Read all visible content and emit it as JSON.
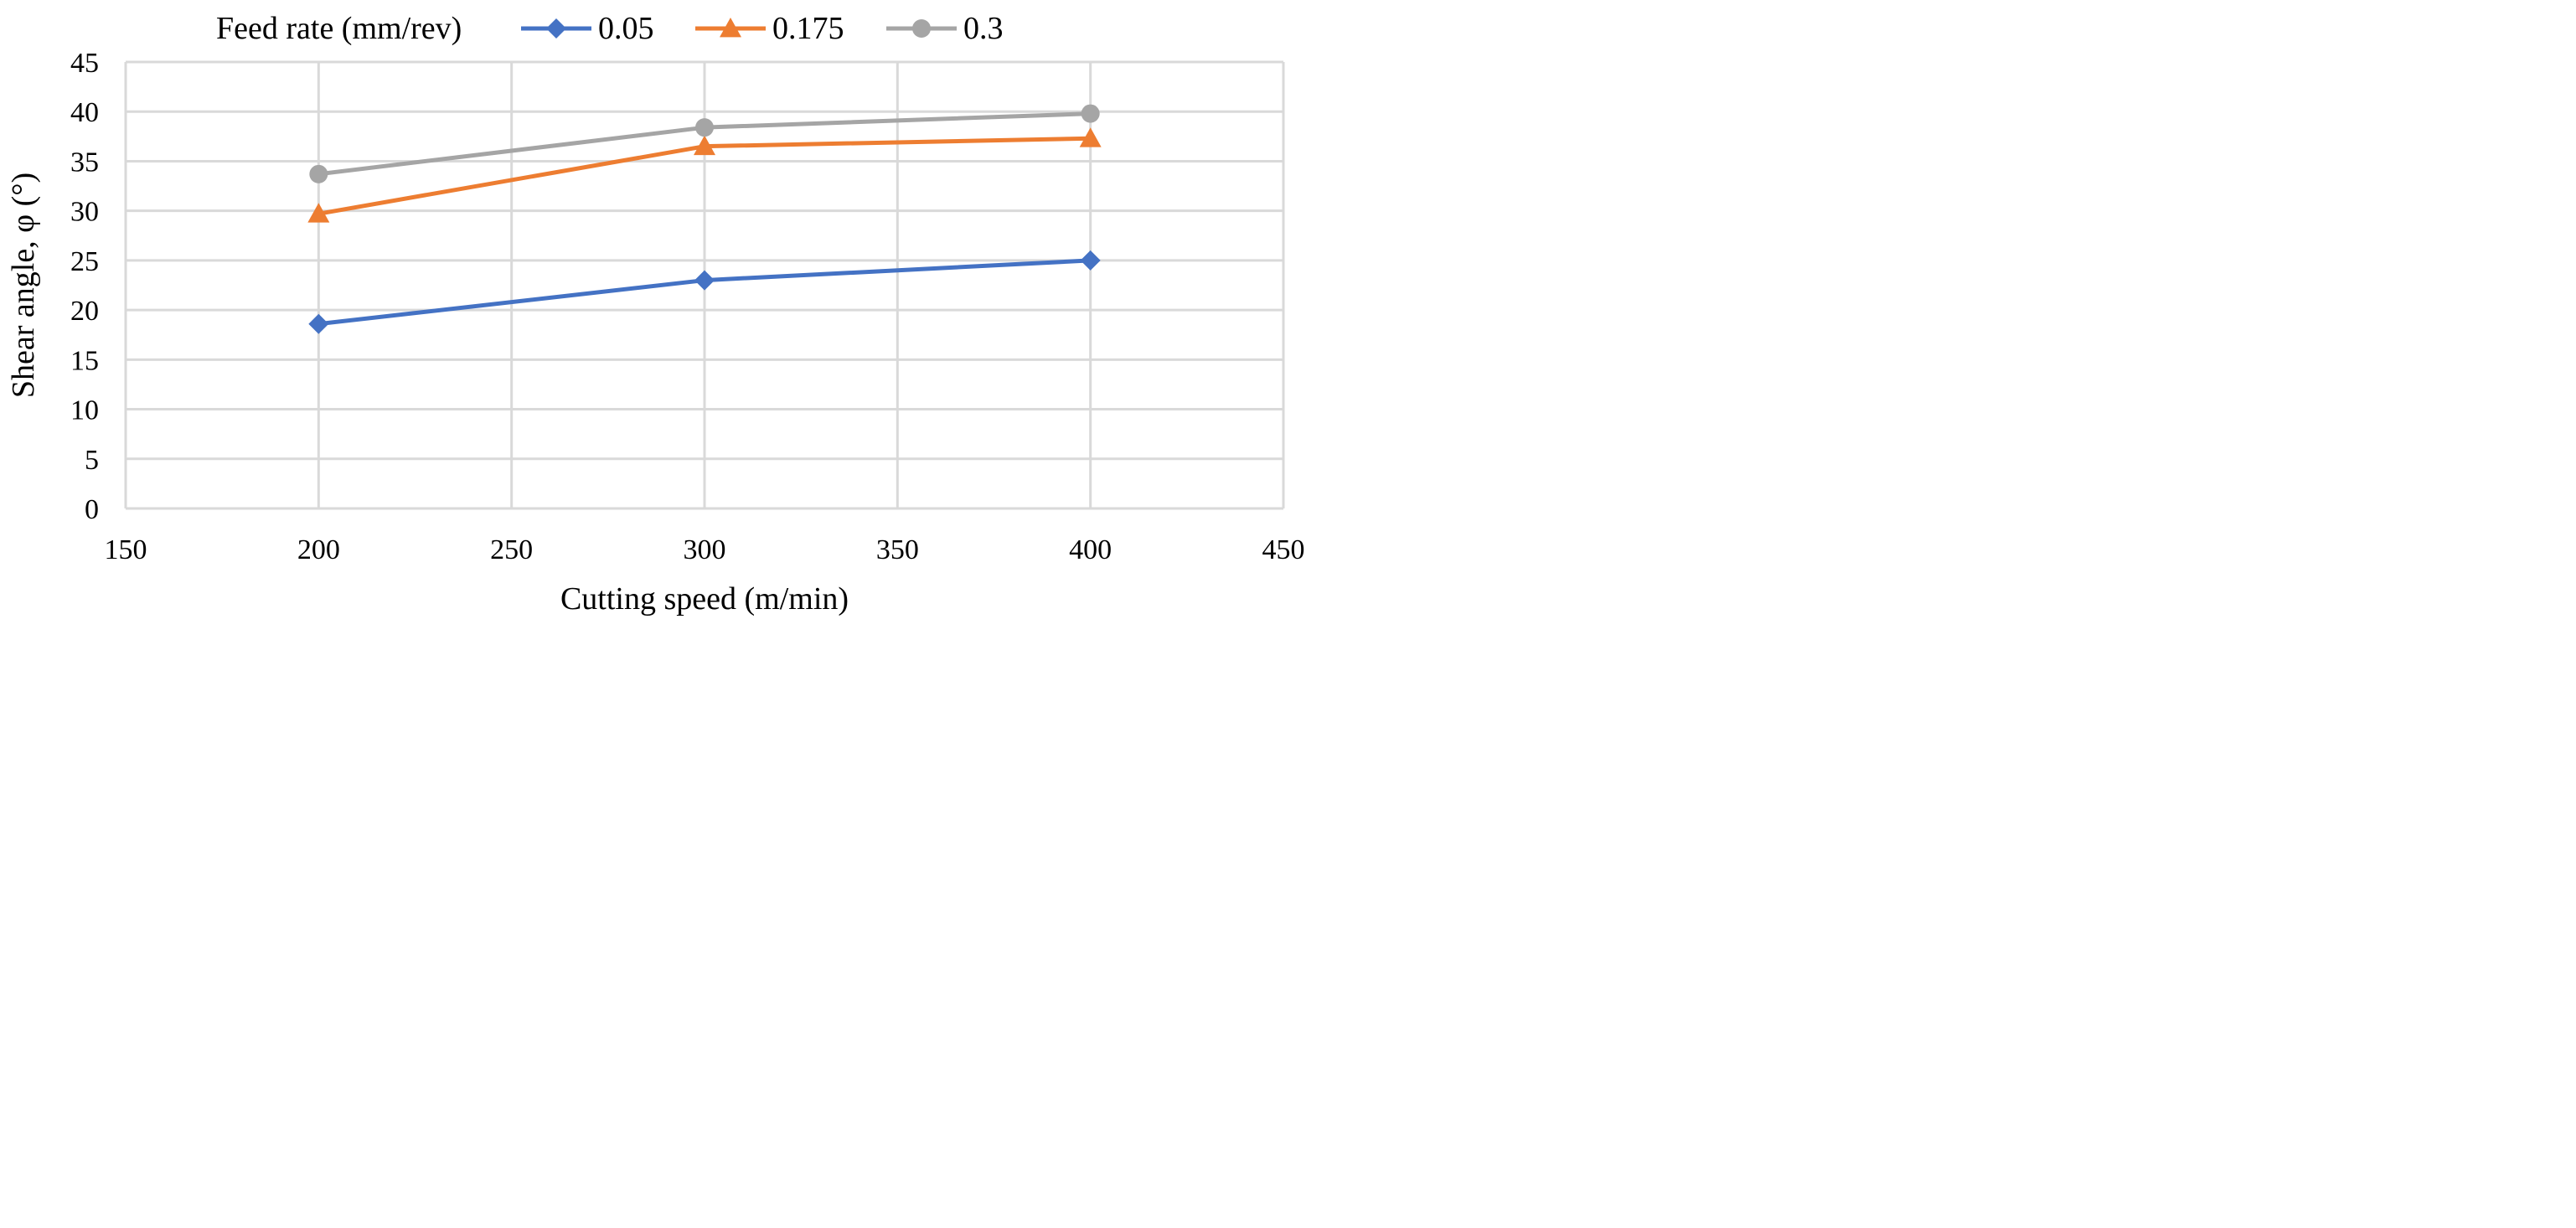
{
  "chart_data": {
    "type": "line",
    "xlabel": "Cutting speed (m/min)",
    "ylabel": "Shear angle, φ  (°)",
    "xlim": [
      150,
      450
    ],
    "ylim": [
      0,
      45
    ],
    "xticks": [
      150,
      200,
      250,
      300,
      350,
      400,
      450
    ],
    "yticks": [
      0,
      5,
      10,
      15,
      20,
      25,
      30,
      35,
      40,
      45
    ],
    "grid": true,
    "legend": {
      "title": "Feed rate (mm/rev)",
      "position": "top"
    },
    "x": [
      200,
      300,
      400
    ],
    "series": [
      {
        "name": "0.05",
        "values": [
          18.6,
          23.0,
          25.0
        ],
        "color": "#4472c4",
        "marker": "diamond"
      },
      {
        "name": "0.175",
        "values": [
          29.7,
          36.5,
          37.3
        ],
        "color": "#ed7d31",
        "marker": "triangle"
      },
      {
        "name": "0.3",
        "values": [
          33.7,
          38.4,
          39.8
        ],
        "color": "#a5a5a5",
        "marker": "circle"
      }
    ]
  }
}
